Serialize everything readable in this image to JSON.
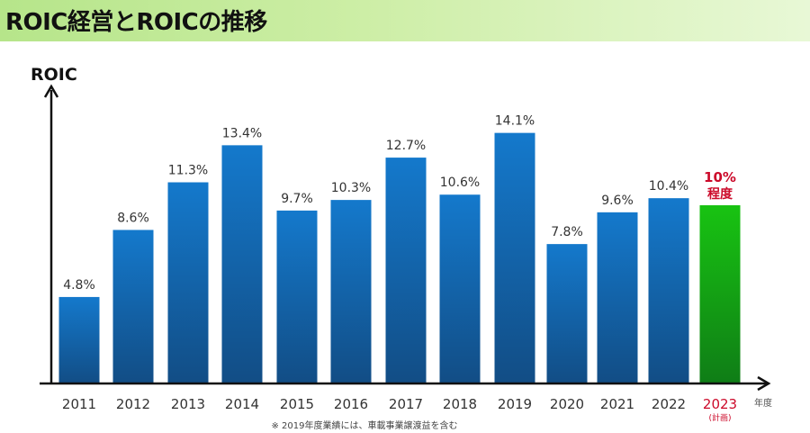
{
  "header": {
    "title": "ROIC経営とROICの推移"
  },
  "chart_data": {
    "type": "bar",
    "title": "ROIC経営とROICの推移",
    "ylabel": "ROIC",
    "xlabel": "年度",
    "categories": [
      "2011",
      "2012",
      "2013",
      "2014",
      "2015",
      "2016",
      "2017",
      "2018",
      "2019",
      "2020",
      "2021",
      "2022",
      "2023"
    ],
    "values": [
      4.8,
      8.6,
      11.3,
      13.4,
      9.7,
      10.3,
      12.7,
      10.6,
      14.1,
      7.8,
      9.6,
      10.4,
      10
    ],
    "labels": [
      "4.8%",
      "8.6%",
      "11.3%",
      "13.4%",
      "9.7%",
      "10.3%",
      "12.7%",
      "10.6%",
      "14.1%",
      "7.8%",
      "9.6%",
      "10.4%",
      "10%"
    ],
    "plan": {
      "index": 12,
      "label_line2": "程度",
      "sublabel": "(計画)"
    },
    "ylim": [
      0,
      17
    ],
    "grid": false,
    "colors": {
      "actual": "#1565b0",
      "plan": "#19a818",
      "plan_text": "#cc0a2a"
    }
  },
  "footnote": "※ 2019年度業績には、車載事業譲渡益を含む"
}
